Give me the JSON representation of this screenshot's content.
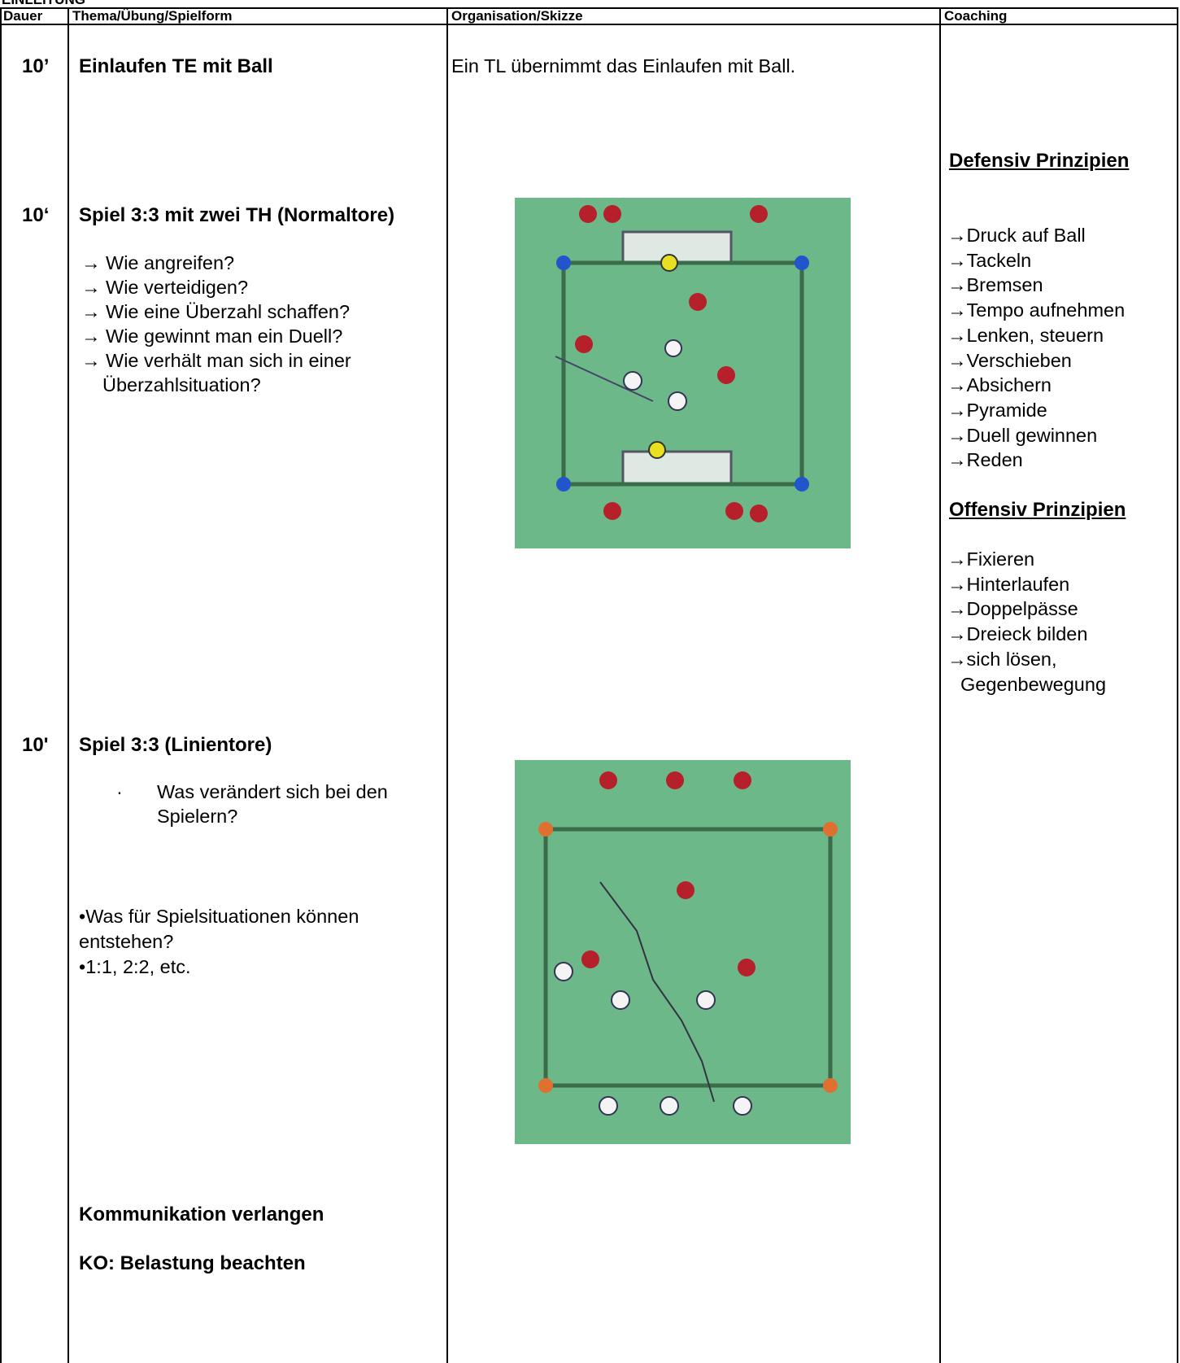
{
  "header": {
    "title": "EINLEITUNG"
  },
  "table": {
    "columns": [
      "Dauer",
      "Thema/Übung/Spielform",
      "Organisation/Skizze",
      "Coaching"
    ],
    "rows": [
      {
        "duration": "10’",
        "topic": "Einlaufen TE mit Ball",
        "organisation": "Ein TL übernimmt das Einlaufen mit Ball."
      },
      {
        "duration": "10‘",
        "topic": "Spiel 3:3 mit zwei TH (Normaltore)",
        "questions": [
          "→ Wie angreifen?",
          "→ Wie verteidigen?",
          "→ Wie eine Überzahl schaffen?",
          "→ Wie gewinnt man ein Duell?",
          "→ Wie verhält man sich in einer",
          "Überzahlsituation?"
        ]
      },
      {
        "duration": "10'",
        "topic": "Spiel 3:3 (Linientore)",
        "bullet": "·",
        "questions": [
          "Was verändert sich bei den",
          "Spielern?"
        ],
        "notes": [
          "•Was für Spielsituationen können",
          "entstehen?",
          "•1:1, 2:2, etc."
        ],
        "remarks": [
          "Kommunikation verlangen",
          "KO: Belastung beachten"
        ]
      }
    ],
    "coaching": {
      "defensive_title": "Defensiv Prinzipien",
      "defensive": [
        "→Druck auf Ball",
        "→Tackeln",
        "→Bremsen",
        "→Tempo aufnehmen",
        "→Lenken, steuern",
        "→Verschieben",
        "→Absichern",
        "→Pyramide",
        "→Duell gewinnen",
        "→Reden"
      ],
      "offensive_title": "Offensiv Prinzipien",
      "offensive": [
        "→Fixieren",
        "→Hinterlaufen",
        "→Doppelpässe",
        "→Dreieck bilden",
        "→sich lösen,",
        "Gegenbewegung"
      ]
    }
  }
}
